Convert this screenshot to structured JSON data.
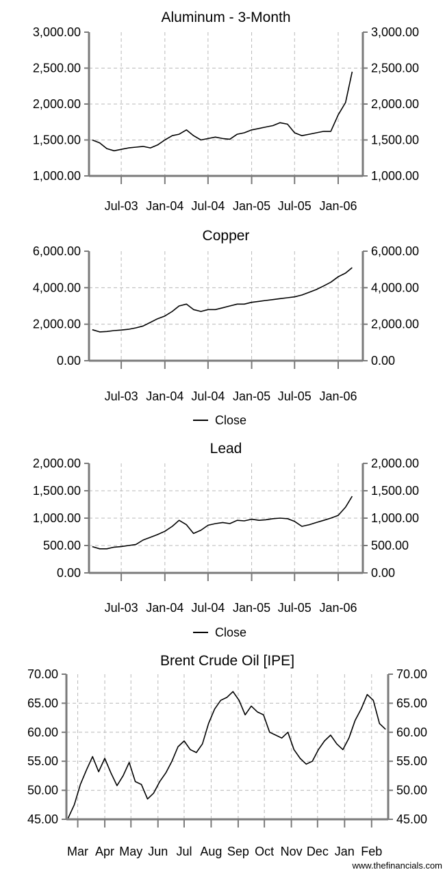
{
  "credit": "www.thefinancials.com",
  "chart_data": [
    {
      "type": "line",
      "title": "Aluminum - 3-Month",
      "ylim": [
        1000,
        3000
      ],
      "y_ticks": [
        "1,000.00",
        "1,500.00",
        "2,000.00",
        "2,500.00",
        "3,000.00"
      ],
      "x_ticks": [
        "Jul-03",
        "Jan-04",
        "Jul-04",
        "Jan-05",
        "Jul-05",
        "Jan-06"
      ],
      "grid": true,
      "legend": null,
      "series": [
        {
          "x": [
            "2003-03",
            "2003-04",
            "2003-05",
            "2003-06",
            "2003-07",
            "2003-08",
            "2003-09",
            "2003-10",
            "2003-11",
            "2003-12",
            "2004-01",
            "2004-02",
            "2004-03",
            "2004-04",
            "2004-05",
            "2004-06",
            "2004-07",
            "2004-08",
            "2004-09",
            "2004-10",
            "2004-11",
            "2004-12",
            "2005-01",
            "2005-02",
            "2005-03",
            "2005-04",
            "2005-05",
            "2005-06",
            "2005-07",
            "2005-08",
            "2005-09",
            "2005-10",
            "2005-11",
            "2005-12",
            "2006-01",
            "2006-02",
            "2006-03"
          ],
          "y": [
            1500,
            1460,
            1380,
            1350,
            1370,
            1390,
            1400,
            1410,
            1390,
            1430,
            1500,
            1560,
            1580,
            1640,
            1560,
            1500,
            1520,
            1540,
            1520,
            1510,
            1580,
            1600,
            1640,
            1660,
            1680,
            1700,
            1740,
            1720,
            1600,
            1560,
            1580,
            1600,
            1620,
            1620,
            1850,
            2020,
            2450
          ]
        }
      ]
    },
    {
      "type": "line",
      "title": "Copper",
      "ylim": [
        0,
        6000
      ],
      "y_ticks": [
        "0.00",
        "2,000.00",
        "4,000.00",
        "6,000.00"
      ],
      "x_ticks": [
        "Jul-03",
        "Jan-04",
        "Jul-04",
        "Jan-05",
        "Jul-05",
        "Jan-06"
      ],
      "grid": true,
      "legend": "Close",
      "series": [
        {
          "name": "Close",
          "x": [
            "2003-03",
            "2003-04",
            "2003-05",
            "2003-06",
            "2003-07",
            "2003-08",
            "2003-09",
            "2003-10",
            "2003-11",
            "2003-12",
            "2004-01",
            "2004-02",
            "2004-03",
            "2004-04",
            "2004-05",
            "2004-06",
            "2004-07",
            "2004-08",
            "2004-09",
            "2004-10",
            "2004-11",
            "2004-12",
            "2005-01",
            "2005-02",
            "2005-03",
            "2005-04",
            "2005-05",
            "2005-06",
            "2005-07",
            "2005-08",
            "2005-09",
            "2005-10",
            "2005-11",
            "2005-12",
            "2006-01",
            "2006-02",
            "2006-03"
          ],
          "y": [
            1700,
            1580,
            1600,
            1650,
            1680,
            1720,
            1800,
            1900,
            2100,
            2300,
            2450,
            2700,
            3000,
            3100,
            2800,
            2700,
            2800,
            2800,
            2900,
            3000,
            3100,
            3100,
            3200,
            3250,
            3300,
            3350,
            3400,
            3450,
            3500,
            3600,
            3750,
            3900,
            4100,
            4300,
            4600,
            4800,
            5100
          ]
        }
      ]
    },
    {
      "type": "line",
      "title": "Lead",
      "ylim": [
        0,
        2000
      ],
      "y_ticks": [
        "0.00",
        "500.00",
        "1,000.00",
        "1,500.00",
        "2,000.00"
      ],
      "x_ticks": [
        "Jul-03",
        "Jan-04",
        "Jul-04",
        "Jan-05",
        "Jul-05",
        "Jan-06"
      ],
      "grid": true,
      "legend": "Close",
      "series": [
        {
          "name": "Close",
          "x": [
            "2003-03",
            "2003-04",
            "2003-05",
            "2003-06",
            "2003-07",
            "2003-08",
            "2003-09",
            "2003-10",
            "2003-11",
            "2003-12",
            "2004-01",
            "2004-02",
            "2004-03",
            "2004-04",
            "2004-05",
            "2004-06",
            "2004-07",
            "2004-08",
            "2004-09",
            "2004-10",
            "2004-11",
            "2004-12",
            "2005-01",
            "2005-02",
            "2005-03",
            "2005-04",
            "2005-05",
            "2005-06",
            "2005-07",
            "2005-08",
            "2005-09",
            "2005-10",
            "2005-11",
            "2005-12",
            "2006-01",
            "2006-02",
            "2006-03"
          ],
          "y": [
            480,
            440,
            440,
            470,
            480,
            500,
            520,
            600,
            650,
            700,
            760,
            850,
            960,
            880,
            720,
            780,
            870,
            900,
            920,
            900,
            960,
            950,
            980,
            960,
            970,
            990,
            1000,
            990,
            940,
            850,
            880,
            920,
            960,
            1000,
            1050,
            1200,
            1400
          ]
        }
      ]
    },
    {
      "type": "line",
      "title": "Brent Crude Oil [IPE]",
      "ylim": [
        45,
        70
      ],
      "y_ticks": [
        "45.00",
        "50.00",
        "55.00",
        "60.00",
        "65.00",
        "70.00"
      ],
      "x_ticks": [
        "Mar",
        "Apr",
        "May",
        "Jun",
        "Jul",
        "Aug",
        "Sep",
        "Oct",
        "Nov",
        "Dec",
        "Jan",
        "Feb"
      ],
      "grid": true,
      "legend": null,
      "series": [
        {
          "x": [
            "2005-02-22",
            "2005-03-01",
            "2005-03-08",
            "2005-03-15",
            "2005-03-22",
            "2005-03-29",
            "2005-04-05",
            "2005-04-12",
            "2005-04-19",
            "2005-04-26",
            "2005-05-03",
            "2005-05-10",
            "2005-05-17",
            "2005-05-24",
            "2005-05-31",
            "2005-06-07",
            "2005-06-14",
            "2005-06-21",
            "2005-06-28",
            "2005-07-05",
            "2005-07-12",
            "2005-07-19",
            "2005-07-26",
            "2005-08-02",
            "2005-08-09",
            "2005-08-16",
            "2005-08-23",
            "2005-08-30",
            "2005-09-06",
            "2005-09-13",
            "2005-09-20",
            "2005-09-27",
            "2005-10-04",
            "2005-10-11",
            "2005-10-18",
            "2005-10-25",
            "2005-11-01",
            "2005-11-08",
            "2005-11-15",
            "2005-11-22",
            "2005-11-29",
            "2005-12-06",
            "2005-12-13",
            "2005-12-20",
            "2005-12-27",
            "2006-01-03",
            "2006-01-10",
            "2006-01-17",
            "2006-01-24",
            "2006-01-31",
            "2006-02-07",
            "2006-02-14",
            "2006-02-21"
          ],
          "y": [
            45.2,
            47.5,
            51.0,
            53.5,
            55.8,
            53.2,
            55.5,
            53.0,
            50.8,
            52.5,
            54.8,
            51.5,
            51.0,
            48.5,
            49.5,
            51.5,
            53.0,
            55.0,
            57.5,
            58.5,
            57.0,
            56.5,
            58.0,
            61.5,
            64.0,
            65.5,
            66.0,
            67.0,
            65.5,
            63.0,
            64.5,
            63.5,
            63.0,
            60.0,
            59.5,
            59.0,
            60.0,
            57.0,
            55.5,
            54.5,
            55.0,
            57.0,
            58.5,
            59.5,
            58.0,
            57.0,
            59.0,
            62.0,
            64.0,
            66.5,
            65.5,
            61.5,
            60.5
          ]
        }
      ]
    }
  ]
}
